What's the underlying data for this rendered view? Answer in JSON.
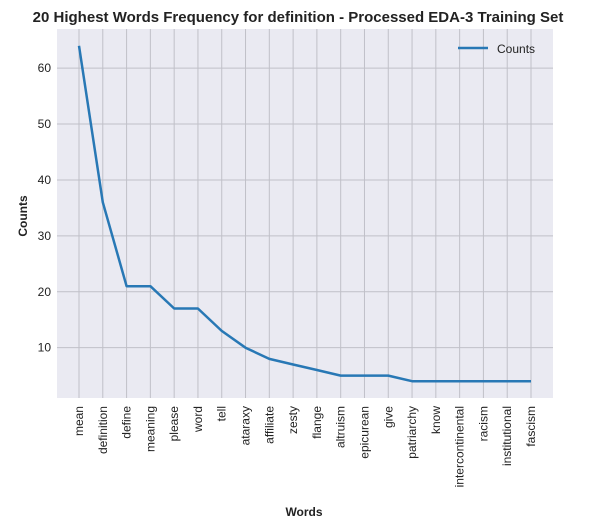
{
  "chart_data": {
    "type": "line",
    "title": "20 Highest Words Frequency for definition - Processed EDA-3 Training Set",
    "xlabel": "Words",
    "ylabel": "Counts",
    "categories": [
      "mean",
      "definition",
      "define",
      "meaning",
      "please",
      "word",
      "tell",
      "ataraxy",
      "affiliate",
      "zesty",
      "flange",
      "altruism",
      "epicurean",
      "give",
      "patriarchy",
      "know",
      "intercontinental",
      "racism",
      "institutional",
      "fascism"
    ],
    "series": [
      {
        "name": "Counts",
        "values": [
          64,
          36,
          21,
          21,
          17,
          17,
          13,
          10,
          8,
          7,
          6,
          5,
          5,
          5,
          4,
          4,
          4,
          4,
          4,
          4
        ]
      }
    ],
    "yticks": [
      10,
      20,
      30,
      40,
      50,
      60
    ],
    "ylim": [
      1,
      67
    ],
    "grid": true,
    "legend_position": "top-right",
    "colors": {
      "line": "#2878b5",
      "plot_bg": "#eaeaf2",
      "grid": "#c0c0c8"
    }
  }
}
